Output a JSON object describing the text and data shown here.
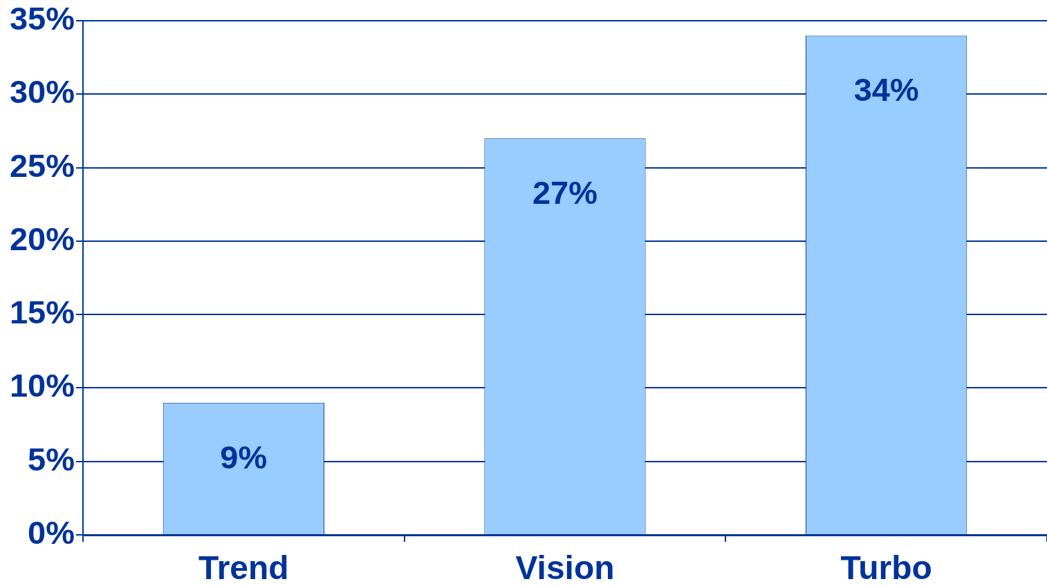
{
  "chart_data": {
    "type": "bar",
    "categories": [
      "Trend",
      "Vision",
      "Turbo"
    ],
    "values": [
      9,
      27,
      34
    ],
    "color": "#99ccff",
    "value_labels": [
      "9%",
      "27%",
      "34%"
    ],
    "ylim": [
      0,
      35
    ],
    "yticks": [
      {
        "value": 0,
        "label": "0%"
      },
      {
        "value": 5,
        "label": "5%"
      },
      {
        "value": 10,
        "label": "10%"
      },
      {
        "value": 15,
        "label": "15%"
      },
      {
        "value": 20,
        "label": "20%"
      },
      {
        "value": 25,
        "label": "25%"
      },
      {
        "value": 30,
        "label": "30%"
      },
      {
        "value": 35,
        "label": "35%"
      }
    ],
    "grid": "y",
    "legend": false
  }
}
